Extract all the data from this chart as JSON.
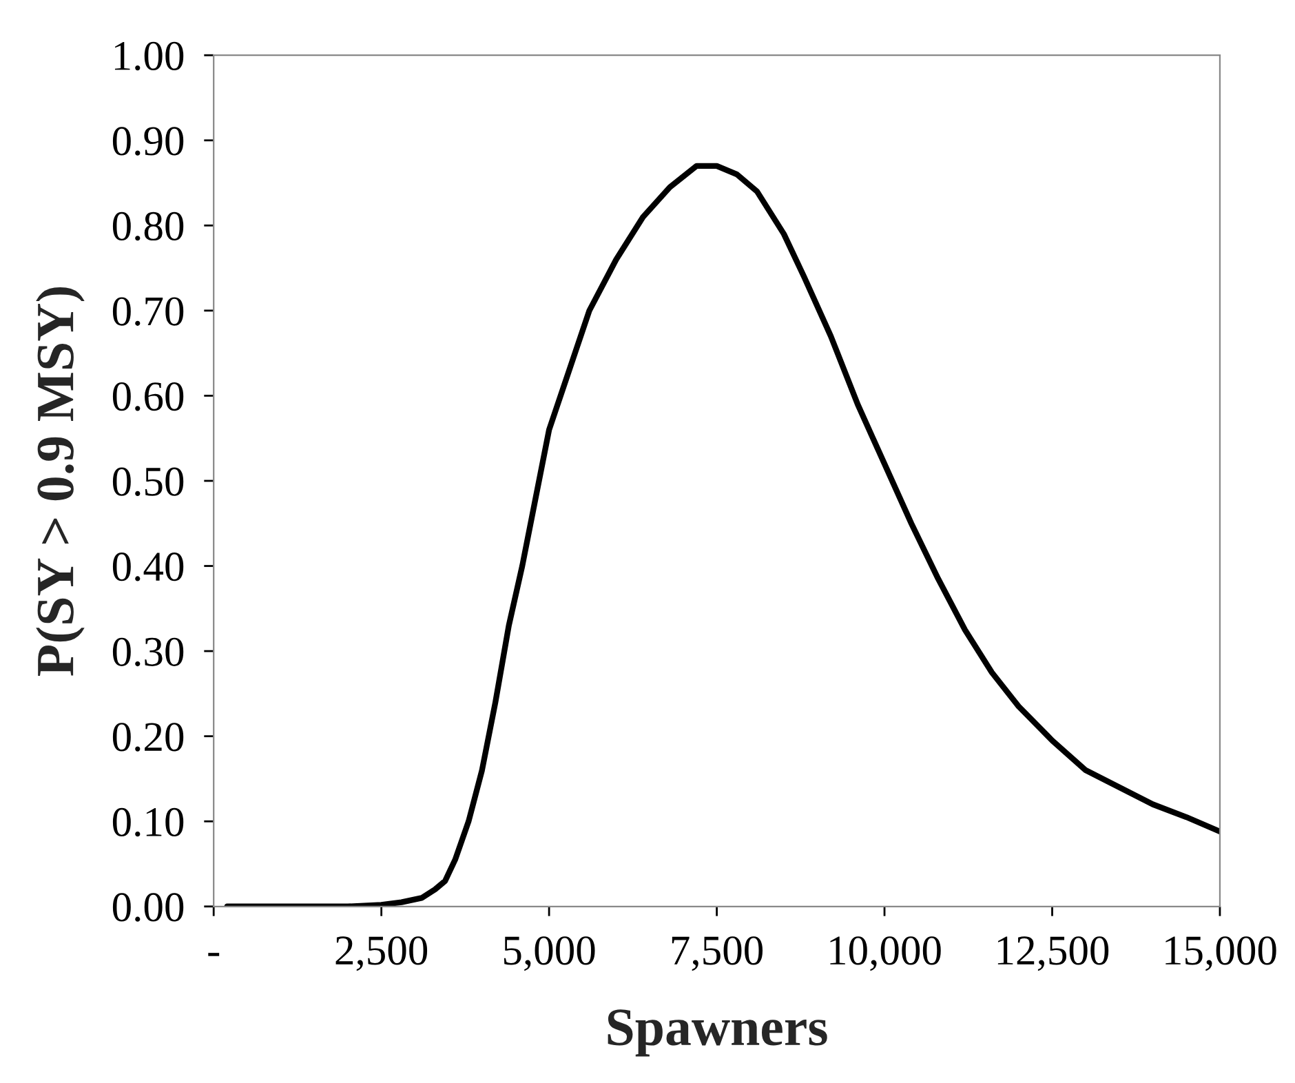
{
  "chart_data": {
    "type": "line",
    "xlabel": "Spawners",
    "ylabel": "P(SY > 0.9 MSY)",
    "x": [
      200,
      1000,
      2000,
      2500,
      2800,
      3100,
      3300,
      3450,
      3600,
      3800,
      4000,
      4200,
      4400,
      4600,
      4800,
      5000,
      5300,
      5600,
      6000,
      6400,
      6800,
      7200,
      7500,
      7800,
      8100,
      8500,
      8800,
      9200,
      9600,
      10000,
      10400,
      10800,
      11200,
      11600,
      12000,
      12500,
      13000,
      13500,
      14000,
      14500,
      15000
    ],
    "series": [
      {
        "color": "#000000",
        "values": [
          0.0,
          0.0,
          0.0,
          0.002,
          0.005,
          0.01,
          0.02,
          0.03,
          0.055,
          0.1,
          0.16,
          0.24,
          0.33,
          0.4,
          0.48,
          0.56,
          0.63,
          0.7,
          0.76,
          0.81,
          0.845,
          0.87,
          0.87,
          0.86,
          0.84,
          0.79,
          0.74,
          0.67,
          0.59,
          0.52,
          0.45,
          0.385,
          0.325,
          0.275,
          0.235,
          0.195,
          0.16,
          0.14,
          0.12,
          0.105,
          0.088
        ]
      }
    ],
    "xlim": [
      0,
      15000
    ],
    "ylim": [
      0,
      1
    ],
    "xticks": [
      {
        "value": 0,
        "label": "-"
      },
      {
        "value": 2500,
        "label": "2,500"
      },
      {
        "value": 5000,
        "label": "5,000"
      },
      {
        "value": 7500,
        "label": "7,500"
      },
      {
        "value": 10000,
        "label": "10,000"
      },
      {
        "value": 12500,
        "label": "12,500"
      },
      {
        "value": 15000,
        "label": "15,000"
      }
    ],
    "yticks": [
      {
        "value": 0,
        "label": "0.00"
      },
      {
        "value": 0.1,
        "label": "0.10"
      },
      {
        "value": 0.2,
        "label": "0.20"
      },
      {
        "value": 0.3,
        "label": "0.30"
      },
      {
        "value": 0.4,
        "label": "0.40"
      },
      {
        "value": 0.5,
        "label": "0.50"
      },
      {
        "value": 0.6,
        "label": "0.60"
      },
      {
        "value": 0.7,
        "label": "0.70"
      },
      {
        "value": 0.8,
        "label": "0.80"
      },
      {
        "value": 0.9,
        "label": "0.90"
      },
      {
        "value": 1.0,
        "label": "1.00"
      }
    ],
    "grid": false
  }
}
